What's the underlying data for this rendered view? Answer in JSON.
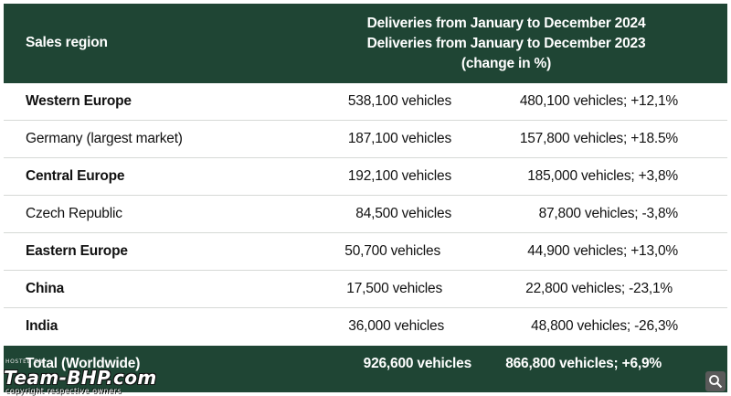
{
  "header": {
    "region_label": "Sales region",
    "period_line1": "Deliveries from January to December 2024",
    "period_line2": "Deliveries from January to December 2023",
    "period_line3": "(change in %)"
  },
  "rows": [
    {
      "region": "Western Europe",
      "d2024": "538,100 vehicles",
      "d2023": "480,100 vehicles; +12,1%"
    },
    {
      "region": "Germany (largest market)",
      "d2024": "187,100 vehicles",
      "d2023": "157,800 vehicles; +18.5%"
    },
    {
      "region": "Central Europe",
      "d2024": "192,100 vehicles",
      "d2023": "185,000 vehicles; +3,8%"
    },
    {
      "region": "Czech Republic",
      "d2024": "84,500 vehicles",
      "d2023": "87,800 vehicles; -3,8%"
    },
    {
      "region": "Eastern Europe",
      "d2024": "50,700 vehicles",
      "d2023": "44,900 vehicles; +13,0%"
    },
    {
      "region": "China",
      "d2024": "17,500 vehicles",
      "d2023": "22,800 vehicles; -23,1%"
    },
    {
      "region": "India",
      "d2024": "36,000 vehicles",
      "d2023": "48,800 vehicles; -26,3%"
    }
  ],
  "total": {
    "region": "Total (Worldwide)",
    "d2024": "926,600 vehicles",
    "d2023": "866,800 vehicles; +6,9%"
  },
  "watermark": {
    "hosted": "HOSTED ON:",
    "logo": "Team-BHP.com",
    "copyright": "copyright respective owners"
  },
  "colors": {
    "header_bg": "#1f4534",
    "row_border": "#d6d9d6"
  }
}
